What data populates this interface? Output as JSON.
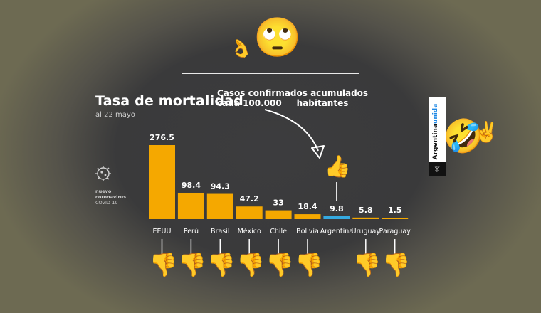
{
  "header": {
    "title": "Tasa de mortalidad",
    "subtitle": "al 22 mayo",
    "annotation_line1": "Casos confirmados acumulados",
    "annotation_line2": "cada 100.000     habitantes"
  },
  "brand": {
    "line1": "nuevo",
    "line2": "coronavirus",
    "line3": "COVID-19"
  },
  "side_panel": {
    "word1": "Argentina",
    "word2": "unida"
  },
  "emojis": {
    "top_face": "🙄",
    "top_hand": "👌",
    "thumbs_up": "👍",
    "thumbs_down": "👎",
    "laughing": "🤣",
    "victory": "✌️"
  },
  "colors": {
    "bar": "#f5a800",
    "highlight": "#35a9e0",
    "background": "#3b3b3c",
    "text": "#ffffff"
  },
  "chart_data": {
    "type": "bar",
    "title": "Tasa de mortalidad",
    "subtitle": "al 22 mayo",
    "categories": [
      "EEUU",
      "Perú",
      "Brasil",
      "México",
      "Chile",
      "Bolivia",
      "Argentina",
      "Uruguay",
      "Paraguay"
    ],
    "values": [
      276.5,
      98.4,
      94.3,
      47.2,
      33,
      18.4,
      9.8,
      5.8,
      1.5
    ],
    "value_labels": [
      "276.5",
      "98.4",
      "94.3",
      "47.2",
      "33",
      "18.4",
      "9.8",
      "5.8",
      "1.5"
    ],
    "highlight_category": "Argentina",
    "ylim": [
      0,
      276.5
    ],
    "grid": false,
    "legend": "none"
  }
}
